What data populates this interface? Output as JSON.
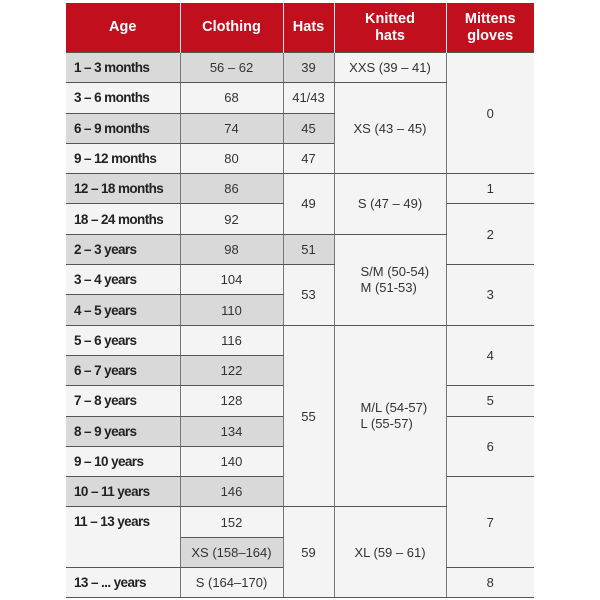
{
  "header": [
    "Age",
    "Clothing",
    "Hats",
    "Knitted\nhats",
    "Mittens\ngloves"
  ],
  "colors": {
    "header_bg": "#c20f1e",
    "shade": "#d9d9d9",
    "cell": "#f4f4f4"
  },
  "rows": [
    [
      {
        "col": "age",
        "text": "1 – 3 months",
        "shade": true
      },
      {
        "col": "clothing",
        "text": "56 – 62",
        "shade": true
      },
      {
        "col": "hats",
        "text": "39",
        "shade": true
      },
      {
        "col": "knitted",
        "text": "XXS (39 – 41)"
      },
      {
        "col": "mittens",
        "text": "0",
        "span": 4
      }
    ],
    [
      {
        "col": "age",
        "text": "3 – 6 months"
      },
      {
        "col": "clothing",
        "text": "68"
      },
      {
        "col": "hats",
        "text": "41/43"
      },
      {
        "col": "knitted",
        "text": "XS (43 – 45)",
        "span": 3
      }
    ],
    [
      {
        "col": "age",
        "text": "6 – 9 months",
        "shade": true
      },
      {
        "col": "clothing",
        "text": "74",
        "shade": true
      },
      {
        "col": "hats",
        "text": "45",
        "shade": true
      }
    ],
    [
      {
        "col": "age",
        "text": "9 – 12 months"
      },
      {
        "col": "clothing",
        "text": "80"
      },
      {
        "col": "hats",
        "text": "47"
      }
    ],
    [
      {
        "col": "age",
        "text": "12 – 18 months",
        "shade": true
      },
      {
        "col": "clothing",
        "text": "86",
        "shade": true
      },
      {
        "col": "hats",
        "text": "49",
        "span": 2
      },
      {
        "col": "knitted",
        "text": "S (47 – 49)",
        "span": 2
      },
      {
        "col": "mittens",
        "text": "1"
      }
    ],
    [
      {
        "col": "age",
        "text": "18 – 24 months"
      },
      {
        "col": "clothing",
        "text": "92"
      },
      {
        "col": "mittens",
        "text": "2",
        "span": 2
      }
    ],
    [
      {
        "col": "age",
        "text": "2 – 3 years",
        "shade": true
      },
      {
        "col": "clothing",
        "text": "98",
        "shade": true
      },
      {
        "col": "hats",
        "text": "51",
        "shade": true
      },
      {
        "col": "knitted",
        "text": "S/M (50-54)\nM (51-53)",
        "span": 3,
        "multi": true
      }
    ],
    [
      {
        "col": "age",
        "text": "3 – 4 years"
      },
      {
        "col": "clothing",
        "text": "104"
      },
      {
        "col": "hats",
        "text": "53",
        "span": 2
      },
      {
        "col": "mittens",
        "text": "3",
        "span": 2
      }
    ],
    [
      {
        "col": "age",
        "text": "4 – 5 years",
        "shade": true
      },
      {
        "col": "clothing",
        "text": "110",
        "shade": true
      }
    ],
    [
      {
        "col": "age",
        "text": "5 – 6 years"
      },
      {
        "col": "clothing",
        "text": "116"
      },
      {
        "col": "hats",
        "text": "55",
        "span": 6
      },
      {
        "col": "knitted",
        "text": "M/L (54-57)\nL (55-57)",
        "span": 6,
        "multi": true
      },
      {
        "col": "mittens",
        "text": "4",
        "span": 2
      }
    ],
    [
      {
        "col": "age",
        "text": "6 – 7 years",
        "shade": true
      },
      {
        "col": "clothing",
        "text": "122",
        "shade": true
      }
    ],
    [
      {
        "col": "age",
        "text": "7 – 8 years"
      },
      {
        "col": "clothing",
        "text": "128"
      },
      {
        "col": "mittens",
        "text": "5"
      }
    ],
    [
      {
        "col": "age",
        "text": "8 – 9 years",
        "shade": true
      },
      {
        "col": "clothing",
        "text": "134",
        "shade": true
      },
      {
        "col": "mittens",
        "text": "6",
        "span": 2
      }
    ],
    [
      {
        "col": "age",
        "text": "9 – 10 years"
      },
      {
        "col": "clothing",
        "text": "140"
      }
    ],
    [
      {
        "col": "age",
        "text": "10 – 11 years",
        "shade": true
      },
      {
        "col": "clothing",
        "text": "146",
        "shade": true
      },
      {
        "col": "mittens",
        "text": "7",
        "span": 3
      }
    ],
    [
      {
        "col": "age",
        "text": "11 – 13 years",
        "span": 2,
        "top": true
      },
      {
        "col": "clothing",
        "text": "152"
      },
      {
        "col": "hats",
        "text": "59",
        "span": 3
      },
      {
        "col": "knitted",
        "text": "XL (59 – 61)",
        "span": 3
      }
    ],
    [
      {
        "col": "clothing",
        "text": "XS (158–164)",
        "shade": true
      }
    ],
    [
      {
        "col": "age",
        "text": "13 – ... years"
      },
      {
        "col": "clothing",
        "text": "S (164–170)"
      },
      {
        "col": "mittens",
        "text": "8"
      }
    ]
  ]
}
